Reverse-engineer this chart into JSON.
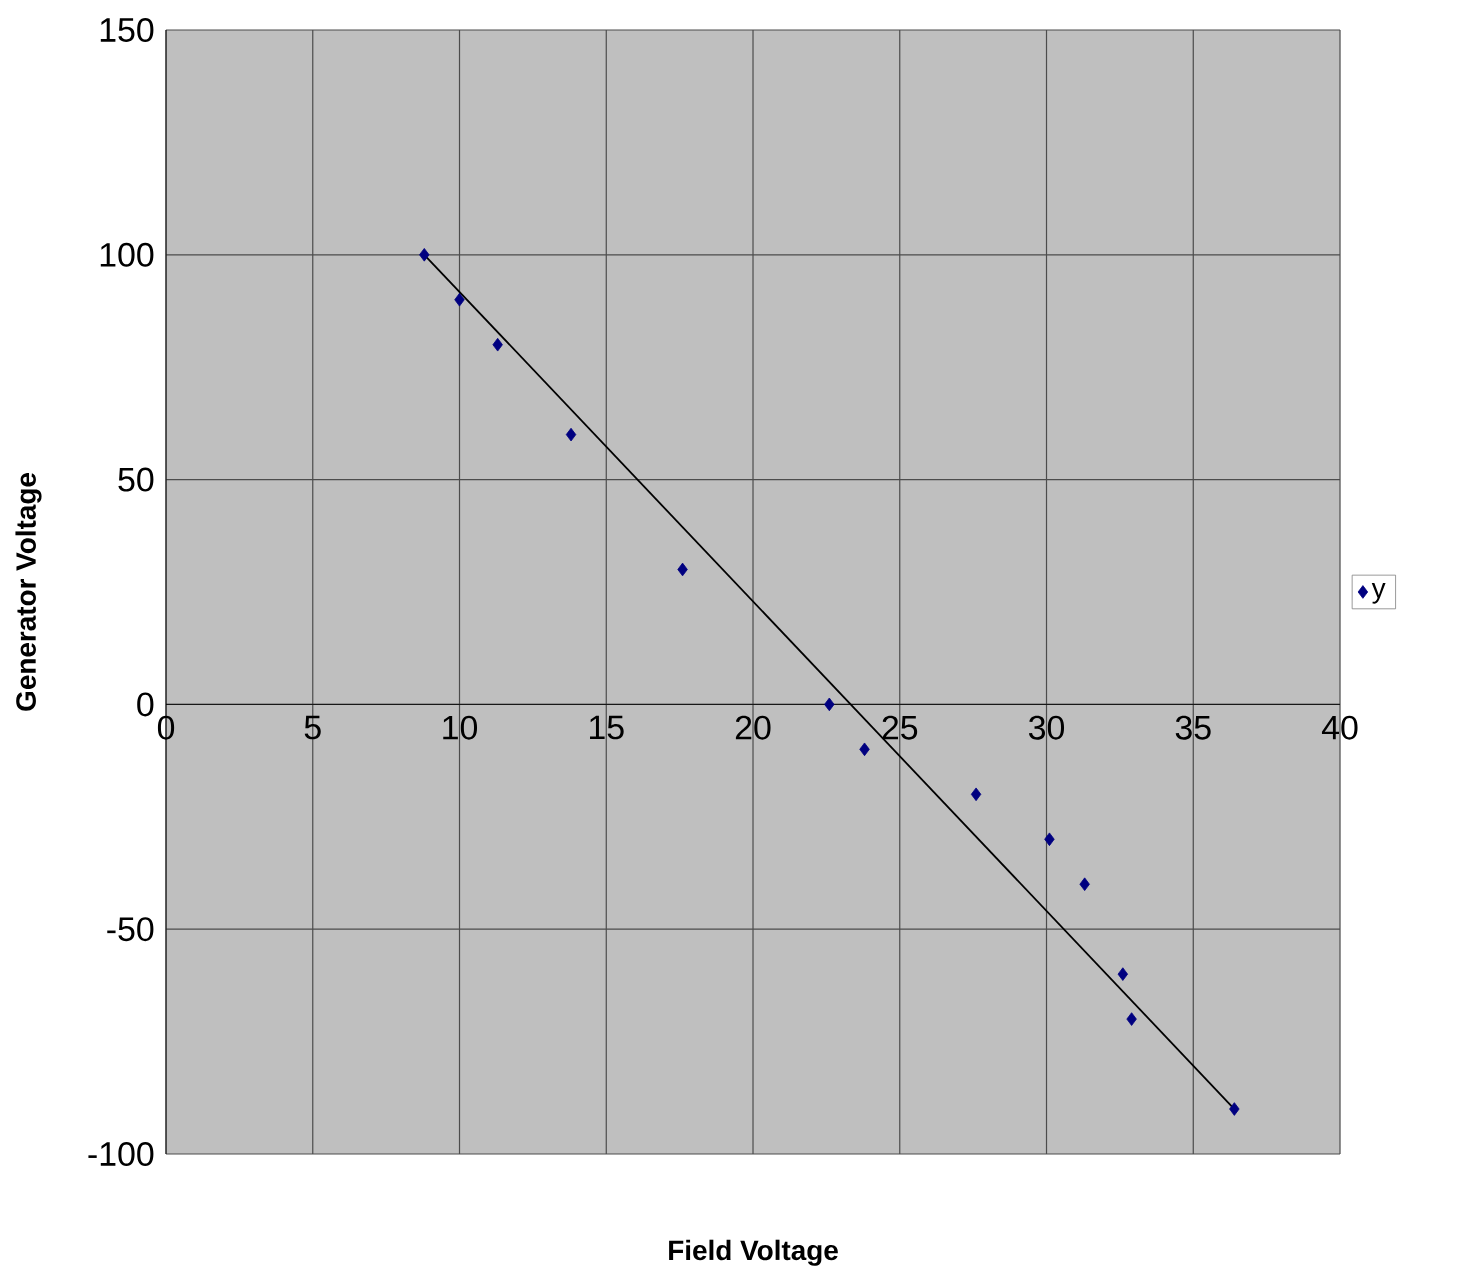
{
  "chart_data": {
    "type": "scatter",
    "xlabel": "Field Voltage",
    "ylabel": "Generator Voltage",
    "xlim": [
      0,
      40
    ],
    "ylim": [
      -100,
      150
    ],
    "xticks": [
      0,
      5,
      10,
      15,
      20,
      25,
      30,
      35,
      40
    ],
    "yticks": [
      -100,
      -50,
      0,
      50,
      100,
      150
    ],
    "grid": true,
    "legend": "right",
    "marker": "diamond",
    "series": [
      {
        "name": "y",
        "color": "#000080",
        "x": [
          8.8,
          10.0,
          11.3,
          13.8,
          17.6,
          22.6,
          23.8,
          27.6,
          30.1,
          31.3,
          32.6,
          32.9,
          36.4
        ],
        "values": [
          100,
          90,
          80,
          60,
          30,
          0,
          -10,
          -20,
          -30,
          -40,
          -60,
          -70,
          -90
        ]
      },
      {
        "type": "line",
        "marker": "none",
        "color": "#000000",
        "x": [
          8.8,
          36.4
        ],
        "values": [
          100,
          -90
        ]
      }
    ]
  }
}
